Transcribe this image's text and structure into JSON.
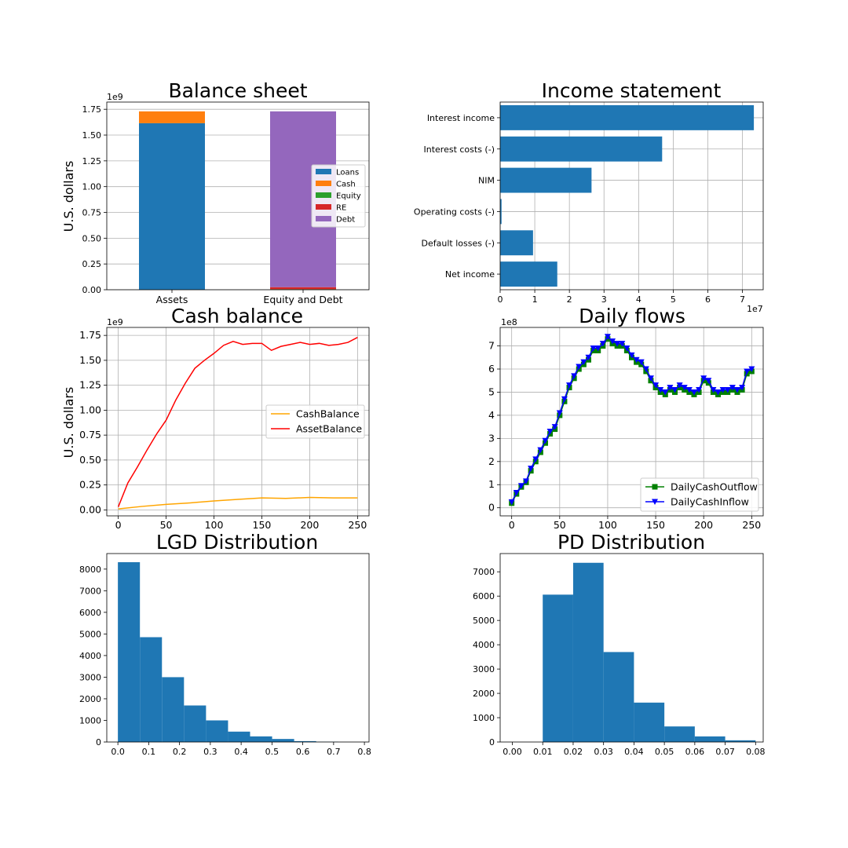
{
  "colors": {
    "loans": "#1f77b4",
    "cash": "#ff7f0e",
    "equity": "#2ca02c",
    "re": "#d62728",
    "debt": "#9467bd",
    "blue": "#1f77b4",
    "cashBalance": "#ffa500",
    "assetBalance": "#ff0000",
    "outflow": "#008000",
    "inflow": "#0000ff"
  },
  "chart_data": [
    {
      "id": "balance",
      "type": "bar",
      "title": "Balance sheet",
      "ylabel": "U.S. dollars",
      "exponent": "1e9",
      "categories": [
        "Assets",
        "Equity and Debt"
      ],
      "ylim": [
        0,
        1.82
      ],
      "yticks": [
        "0.00",
        "0.25",
        "0.50",
        "0.75",
        "1.00",
        "1.25",
        "1.50",
        "1.75"
      ],
      "stacks": [
        [
          {
            "name": "Loans",
            "value": 1.615
          },
          {
            "name": "Cash",
            "value": 0.115
          }
        ],
        [
          {
            "name": "Equity",
            "value": 0.005
          },
          {
            "name": "RE",
            "value": 0.02
          },
          {
            "name": "Debt",
            "value": 1.705
          }
        ]
      ],
      "legend": [
        "Loans",
        "Cash",
        "Equity",
        "RE",
        "Debt"
      ],
      "grid": true,
      "legend_position": "center-right"
    },
    {
      "id": "income",
      "type": "bar",
      "orientation": "horizontal",
      "title": "Income statement",
      "exponent": "1e7",
      "categories": [
        "Interest income",
        "Interest costs (-)",
        "NIM",
        "Operating costs (-)",
        "Default losses (-)",
        "Net income"
      ],
      "values": [
        7.33,
        4.68,
        2.64,
        0.04,
        0.95,
        1.65
      ],
      "xlim": [
        0,
        7.6
      ],
      "xticks": [
        "0",
        "1",
        "2",
        "3",
        "4",
        "5",
        "6",
        "7"
      ],
      "grid": true
    },
    {
      "id": "cash",
      "type": "line",
      "title": "Cash balance",
      "ylabel": "U.S. dollars",
      "exponent": "1e9",
      "xlim": [
        -12,
        262
      ],
      "ylim": [
        -0.06,
        1.83
      ],
      "xticks": [
        "0",
        "50",
        "100",
        "150",
        "200",
        "250"
      ],
      "yticks": [
        "0.00",
        "0.25",
        "0.50",
        "0.75",
        "1.00",
        "1.25",
        "1.50",
        "1.75"
      ],
      "series": [
        {
          "name": "CashBalance",
          "x": [
            0,
            25,
            50,
            75,
            100,
            125,
            150,
            175,
            200,
            225,
            250
          ],
          "y": [
            0.01,
            0.035,
            0.055,
            0.07,
            0.09,
            0.105,
            0.12,
            0.115,
            0.125,
            0.12,
            0.12
          ]
        },
        {
          "name": "AssetBalance",
          "x": [
            0,
            5,
            10,
            20,
            30,
            40,
            50,
            60,
            70,
            80,
            90,
            100,
            110,
            120,
            130,
            140,
            150,
            160,
            170,
            180,
            190,
            200,
            210,
            220,
            230,
            240,
            250
          ],
          "y": [
            0.03,
            0.15,
            0.27,
            0.43,
            0.6,
            0.76,
            0.9,
            1.1,
            1.27,
            1.42,
            1.5,
            1.57,
            1.65,
            1.69,
            1.66,
            1.67,
            1.67,
            1.6,
            1.64,
            1.66,
            1.68,
            1.66,
            1.67,
            1.65,
            1.66,
            1.68,
            1.73
          ]
        }
      ],
      "grid": true,
      "legend_position": "center-right"
    },
    {
      "id": "flows",
      "type": "line",
      "title": "Daily flows",
      "exponent": "1e8",
      "xlim": [
        -12,
        262
      ],
      "ylim": [
        -0.35,
        7.8
      ],
      "xticks": [
        "0",
        "50",
        "100",
        "150",
        "200",
        "250"
      ],
      "yticks": [
        "0",
        "1",
        "2",
        "3",
        "4",
        "5",
        "6",
        "7"
      ],
      "series": [
        {
          "name": "DailyCashOutflow",
          "x": [
            0,
            5,
            10,
            15,
            20,
            25,
            30,
            35,
            40,
            45,
            50,
            55,
            60,
            65,
            70,
            75,
            80,
            85,
            90,
            95,
            100,
            105,
            110,
            115,
            120,
            125,
            130,
            135,
            140,
            145,
            150,
            155,
            160,
            165,
            170,
            175,
            180,
            185,
            190,
            195,
            200,
            205,
            210,
            215,
            220,
            225,
            230,
            235,
            240,
            245,
            250
          ],
          "y": [
            0.2,
            0.6,
            0.9,
            1.1,
            1.6,
            2.0,
            2.4,
            2.8,
            3.2,
            3.4,
            4.0,
            4.6,
            5.2,
            5.6,
            6.0,
            6.2,
            6.4,
            6.8,
            6.8,
            7.0,
            7.3,
            7.1,
            7.0,
            7.0,
            6.8,
            6.5,
            6.3,
            6.2,
            5.9,
            5.5,
            5.2,
            5.0,
            4.9,
            5.1,
            5.0,
            5.2,
            5.1,
            5.0,
            4.9,
            5.0,
            5.5,
            5.4,
            5.0,
            4.9,
            5.0,
            5.0,
            5.1,
            5.0,
            5.1,
            5.8,
            5.9
          ]
        },
        {
          "name": "DailyCashInflow",
          "x": [
            0,
            5,
            10,
            15,
            20,
            25,
            30,
            35,
            40,
            45,
            50,
            55,
            60,
            65,
            70,
            75,
            80,
            85,
            90,
            95,
            100,
            105,
            110,
            115,
            120,
            125,
            130,
            135,
            140,
            145,
            150,
            155,
            160,
            165,
            170,
            175,
            180,
            185,
            190,
            195,
            200,
            205,
            210,
            215,
            220,
            225,
            230,
            235,
            240,
            245,
            250
          ],
          "y": [
            0.25,
            0.65,
            0.95,
            1.15,
            1.7,
            2.1,
            2.5,
            2.9,
            3.3,
            3.5,
            4.1,
            4.7,
            5.3,
            5.7,
            6.1,
            6.3,
            6.5,
            6.9,
            6.9,
            7.1,
            7.4,
            7.2,
            7.1,
            7.1,
            6.9,
            6.6,
            6.4,
            6.3,
            6.0,
            5.6,
            5.3,
            5.1,
            5.0,
            5.2,
            5.1,
            5.3,
            5.2,
            5.1,
            5.0,
            5.1,
            5.6,
            5.5,
            5.1,
            5.0,
            5.1,
            5.1,
            5.2,
            5.1,
            5.2,
            5.9,
            6.0
          ]
        }
      ],
      "grid": true,
      "legend_position": "lower-right"
    },
    {
      "id": "lgd",
      "type": "bar",
      "title": "LGD Distribution",
      "bin_edges": [
        0.0,
        0.0715,
        0.143,
        0.2145,
        0.286,
        0.3575,
        0.429,
        0.5005,
        0.572,
        0.6435,
        0.715
      ],
      "values": [
        8320,
        4850,
        3000,
        1690,
        1000,
        480,
        260,
        140,
        40,
        10
      ],
      "xlim": [
        -0.036,
        0.815
      ],
      "ylim": [
        0,
        8720
      ],
      "xticks": [
        "0.0",
        "0.1",
        "0.2",
        "0.3",
        "0.4",
        "0.5",
        "0.6",
        "0.7",
        "0.8"
      ],
      "yticks": [
        "0",
        "1000",
        "2000",
        "3000",
        "4000",
        "5000",
        "6000",
        "7000",
        "8000"
      ],
      "grid": false
    },
    {
      "id": "pd",
      "type": "bar",
      "title": "PD Distribution",
      "bin_edges": [
        0.0,
        0.01,
        0.02,
        0.03,
        0.04,
        0.05,
        0.06,
        0.07,
        0.08
      ],
      "values": [
        0,
        6060,
        7370,
        3700,
        1620,
        640,
        230,
        70
      ],
      "xlim": [
        -0.004,
        0.0825
      ],
      "ylim": [
        0,
        7750
      ],
      "xticks": [
        "0.00",
        "0.01",
        "0.02",
        "0.03",
        "0.04",
        "0.05",
        "0.06",
        "0.07",
        "0.08"
      ],
      "yticks": [
        "0",
        "1000",
        "2000",
        "3000",
        "4000",
        "5000",
        "6000",
        "7000"
      ],
      "grid": false
    }
  ]
}
